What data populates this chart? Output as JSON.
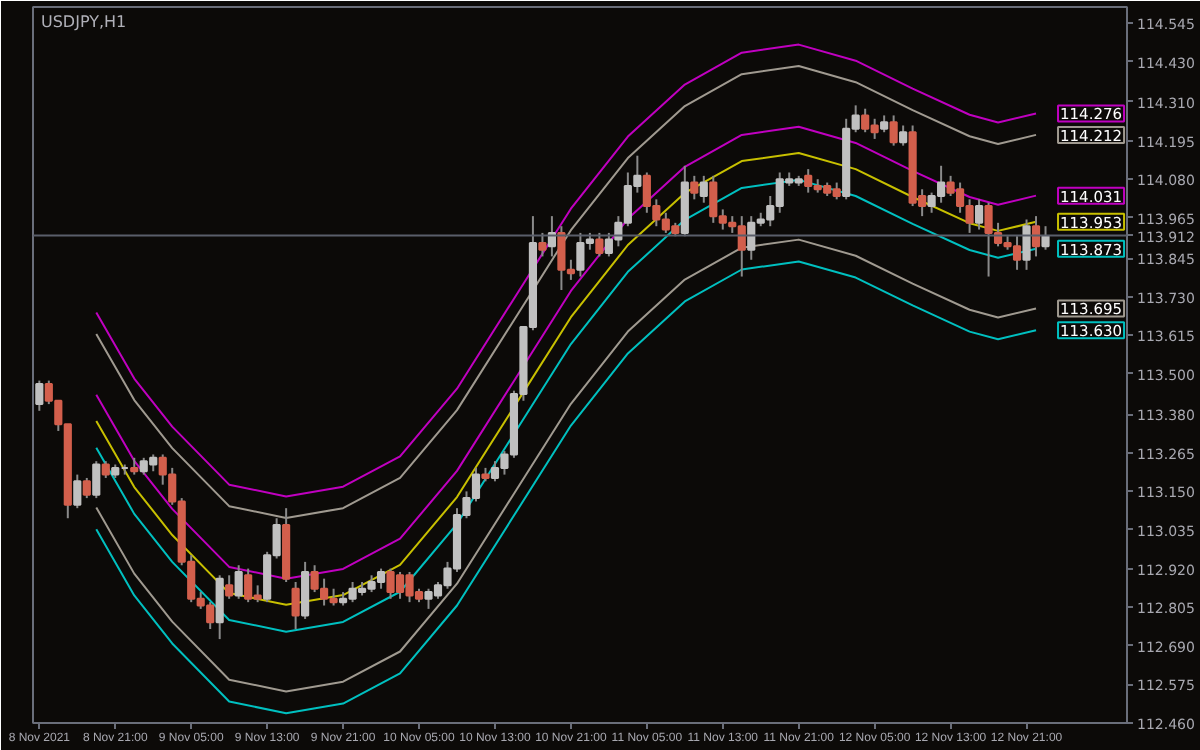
{
  "chart_data": {
    "type": "candlestick",
    "title": "USDJPY,H1",
    "x": [
      "2021-11-08T13:00",
      "2021-11-08T14:00",
      "2021-11-08T15:00",
      "2021-11-08T16:00",
      "2021-11-08T17:00",
      "2021-11-08T18:00",
      "2021-11-08T19:00",
      "2021-11-08T20:00",
      "2021-11-08T21:00",
      "2021-11-08T22:00",
      "2021-11-08T23:00",
      "2021-11-09T00:00",
      "2021-11-09T01:00",
      "2021-11-09T02:00",
      "2021-11-09T03:00",
      "2021-11-09T04:00",
      "2021-11-09T05:00",
      "2021-11-09T06:00",
      "2021-11-09T07:00",
      "2021-11-09T08:00",
      "2021-11-09T09:00",
      "2021-11-09T10:00",
      "2021-11-09T11:00",
      "2021-11-09T12:00",
      "2021-11-09T13:00",
      "2021-11-09T14:00",
      "2021-11-09T15:00",
      "2021-11-09T16:00",
      "2021-11-09T17:00",
      "2021-11-09T18:00",
      "2021-11-09T19:00",
      "2021-11-09T20:00",
      "2021-11-09T21:00",
      "2021-11-09T22:00",
      "2021-11-09T23:00",
      "2021-11-10T00:00",
      "2021-11-10T01:00",
      "2021-11-10T02:00",
      "2021-11-10T03:00",
      "2021-11-10T04:00",
      "2021-11-10T05:00",
      "2021-11-10T06:00",
      "2021-11-10T07:00",
      "2021-11-10T08:00",
      "2021-11-10T09:00",
      "2021-11-10T10:00",
      "2021-11-10T11:00",
      "2021-11-10T12:00",
      "2021-11-10T13:00",
      "2021-11-10T14:00",
      "2021-11-10T15:00",
      "2021-11-10T16:00",
      "2021-11-10T17:00",
      "2021-11-10T18:00",
      "2021-11-10T19:00",
      "2021-11-10T20:00",
      "2021-11-10T21:00",
      "2021-11-10T22:00",
      "2021-11-10T23:00",
      "2021-11-11T00:00",
      "2021-11-11T01:00",
      "2021-11-11T02:00",
      "2021-11-11T03:00",
      "2021-11-11T04:00",
      "2021-11-11T05:00",
      "2021-11-11T06:00",
      "2021-11-11T07:00",
      "2021-11-11T08:00",
      "2021-11-11T09:00",
      "2021-11-11T10:00",
      "2021-11-11T11:00",
      "2021-11-11T12:00",
      "2021-11-11T13:00",
      "2021-11-11T14:00",
      "2021-11-11T15:00",
      "2021-11-11T16:00",
      "2021-11-11T17:00",
      "2021-11-11T18:00",
      "2021-11-11T19:00",
      "2021-11-11T20:00",
      "2021-11-11T21:00",
      "2021-11-11T22:00",
      "2021-11-11T23:00",
      "2021-11-12T00:00",
      "2021-11-12T01:00",
      "2021-11-12T02:00",
      "2021-11-12T03:00",
      "2021-11-12T04:00",
      "2021-11-12T05:00",
      "2021-11-12T06:00",
      "2021-11-12T07:00",
      "2021-11-12T08:00",
      "2021-11-12T09:00",
      "2021-11-12T10:00",
      "2021-11-12T11:00",
      "2021-11-12T12:00",
      "2021-11-12T13:00",
      "2021-11-12T14:00",
      "2021-11-12T15:00",
      "2021-11-12T16:00",
      "2021-11-12T17:00",
      "2021-11-12T18:00",
      "2021-11-12T19:00",
      "2021-11-12T20:00",
      "2021-11-12T21:00",
      "2021-11-12T22:00",
      "2021-11-12T23:00"
    ],
    "ohlc": [
      [
        113.41,
        113.48,
        113.39,
        113.47
      ],
      [
        113.47,
        113.48,
        113.41,
        113.42
      ],
      [
        113.42,
        113.42,
        113.33,
        113.35
      ],
      [
        113.35,
        113.35,
        113.07,
        113.11
      ],
      [
        113.11,
        113.2,
        113.1,
        113.18
      ],
      [
        113.18,
        113.19,
        113.13,
        113.14
      ],
      [
        113.14,
        113.24,
        113.13,
        113.23
      ],
      [
        113.23,
        113.24,
        113.19,
        113.2
      ],
      [
        113.2,
        113.23,
        113.19,
        113.22
      ],
      [
        113.22,
        113.23,
        113.2,
        113.22
      ],
      [
        113.22,
        113.25,
        113.2,
        113.21
      ],
      [
        113.21,
        113.25,
        113.2,
        113.24
      ],
      [
        113.23,
        113.26,
        113.21,
        113.25
      ],
      [
        113.25,
        113.26,
        113.17,
        113.2
      ],
      [
        113.2,
        113.22,
        113.11,
        113.12
      ],
      [
        113.12,
        113.13,
        112.93,
        112.94
      ],
      [
        112.94,
        112.96,
        112.82,
        112.83
      ],
      [
        112.83,
        112.85,
        112.8,
        112.81
      ],
      [
        112.81,
        112.82,
        112.74,
        112.76
      ],
      [
        112.76,
        112.9,
        112.71,
        112.89
      ],
      [
        112.87,
        112.9,
        112.83,
        112.84
      ],
      [
        112.84,
        112.93,
        112.83,
        112.91
      ],
      [
        112.9,
        112.92,
        112.82,
        112.83
      ],
      [
        112.84,
        112.87,
        112.82,
        112.83
      ],
      [
        112.83,
        112.97,
        112.82,
        112.96
      ],
      [
        112.96,
        113.07,
        112.95,
        113.05
      ],
      [
        113.05,
        113.1,
        112.88,
        112.89
      ],
      [
        112.86,
        112.88,
        112.74,
        112.78
      ],
      [
        112.78,
        112.94,
        112.77,
        112.91
      ],
      [
        112.91,
        112.93,
        112.85,
        112.86
      ],
      [
        112.86,
        112.89,
        112.81,
        112.83
      ],
      [
        112.83,
        112.86,
        112.81,
        112.82
      ],
      [
        112.82,
        112.85,
        112.81,
        112.83
      ],
      [
        112.83,
        112.88,
        112.82,
        112.86
      ],
      [
        112.85,
        112.88,
        112.84,
        112.86
      ],
      [
        112.86,
        112.9,
        112.85,
        112.88
      ],
      [
        112.88,
        112.92,
        112.86,
        112.91
      ],
      [
        112.91,
        112.92,
        112.83,
        112.85
      ],
      [
        112.9,
        112.91,
        112.83,
        112.85
      ],
      [
        112.9,
        112.91,
        112.82,
        112.84
      ],
      [
        112.85,
        112.86,
        112.82,
        112.83
      ],
      [
        112.83,
        112.86,
        112.8,
        112.85
      ],
      [
        112.84,
        112.88,
        112.83,
        112.87
      ],
      [
        112.87,
        112.94,
        112.86,
        112.92
      ],
      [
        112.92,
        113.1,
        112.91,
        113.08
      ],
      [
        113.08,
        113.15,
        113.07,
        113.13
      ],
      [
        113.13,
        113.22,
        113.12,
        113.2
      ],
      [
        113.2,
        113.22,
        113.18,
        113.19
      ],
      [
        113.19,
        113.24,
        113.18,
        113.22
      ],
      [
        113.22,
        113.27,
        113.2,
        113.26
      ],
      [
        113.26,
        113.45,
        113.25,
        113.44
      ],
      [
        113.44,
        113.64,
        113.42,
        113.64
      ],
      [
        113.64,
        113.97,
        113.63,
        113.89
      ],
      [
        113.89,
        113.92,
        113.85,
        113.87
      ],
      [
        113.88,
        113.97,
        113.85,
        113.92
      ],
      [
        113.92,
        113.94,
        113.75,
        113.81
      ],
      [
        113.81,
        113.84,
        113.78,
        113.8
      ],
      [
        113.81,
        113.92,
        113.79,
        113.89
      ],
      [
        113.89,
        113.92,
        113.87,
        113.9
      ],
      [
        113.9,
        113.92,
        113.85,
        113.86
      ],
      [
        113.86,
        113.92,
        113.85,
        113.9
      ],
      [
        113.9,
        113.97,
        113.88,
        113.95
      ],
      [
        113.95,
        114.1,
        113.94,
        114.06
      ],
      [
        114.06,
        114.15,
        114.04,
        114.09
      ],
      [
        114.09,
        114.1,
        113.98,
        114.0
      ],
      [
        114.0,
        114.02,
        113.94,
        113.96
      ],
      [
        113.96,
        113.98,
        113.92,
        113.93
      ],
      [
        113.94,
        113.95,
        113.91,
        113.92
      ],
      [
        113.92,
        114.12,
        113.91,
        114.07
      ],
      [
        114.07,
        114.09,
        114.02,
        114.04
      ],
      [
        114.03,
        114.09,
        114.01,
        114.07
      ],
      [
        114.07,
        114.09,
        113.95,
        113.97
      ],
      [
        113.97,
        113.99,
        113.93,
        113.95
      ],
      [
        113.95,
        113.97,
        113.92,
        113.94
      ],
      [
        113.94,
        113.97,
        113.79,
        113.87
      ],
      [
        113.87,
        113.97,
        113.84,
        113.95
      ],
      [
        113.95,
        113.98,
        113.94,
        113.96
      ],
      [
        113.96,
        114.03,
        113.94,
        114.0
      ],
      [
        114.0,
        114.1,
        113.98,
        114.08
      ],
      [
        114.07,
        114.1,
        114.06,
        114.08
      ],
      [
        114.07,
        114.09,
        114.06,
        114.08
      ],
      [
        114.09,
        114.11,
        114.04,
        114.06
      ],
      [
        114.06,
        114.08,
        114.04,
        114.05
      ],
      [
        114.06,
        114.07,
        114.03,
        114.04
      ],
      [
        114.05,
        114.07,
        114.02,
        114.03
      ],
      [
        114.03,
        114.26,
        114.02,
        114.23
      ],
      [
        114.23,
        114.3,
        114.22,
        114.27
      ],
      [
        114.27,
        114.29,
        114.22,
        114.23
      ],
      [
        114.24,
        114.26,
        114.2,
        114.22
      ],
      [
        114.23,
        114.27,
        114.22,
        114.25
      ],
      [
        114.25,
        114.27,
        114.18,
        114.19
      ],
      [
        114.19,
        114.24,
        114.18,
        114.22
      ],
      [
        114.22,
        114.24,
        114.0,
        114.01
      ],
      [
        114.03,
        114.05,
        113.97,
        114.0
      ],
      [
        114.0,
        114.04,
        113.98,
        114.03
      ],
      [
        114.03,
        114.12,
        114.01,
        114.07
      ],
      [
        114.07,
        114.09,
        114.03,
        114.04
      ],
      [
        114.05,
        114.07,
        113.98,
        114.0
      ],
      [
        114.0,
        114.02,
        113.92,
        113.95
      ],
      [
        113.95,
        114.02,
        113.93,
        114.0
      ],
      [
        114.0,
        114.01,
        113.79,
        113.92
      ],
      [
        113.92,
        113.95,
        113.88,
        113.89
      ],
      [
        113.89,
        113.91,
        113.87,
        113.88
      ],
      [
        113.88,
        113.91,
        113.81,
        113.84
      ],
      [
        113.84,
        113.96,
        113.81,
        113.94
      ],
      [
        113.94,
        113.97,
        113.85,
        113.88
      ],
      [
        113.88,
        113.94,
        113.87,
        113.91
      ]
    ],
    "colors": [
      "#c0c0c0",
      "#d35f4c",
      "#d35f4c",
      "#d35f4c",
      "#c0c0c0",
      "#d35f4c",
      "#c0c0c0",
      "#d35f4c",
      "#c0c0c0",
      "#c0c0c0",
      "#d35f4c",
      "#c0c0c0",
      "#c0c0c0",
      "#d35f4c",
      "#d35f4c",
      "#d35f4c",
      "#d35f4c",
      "#d35f4c",
      "#d35f4c",
      "#c0c0c0",
      "#d35f4c",
      "#c0c0c0",
      "#d35f4c",
      "#d35f4c",
      "#c0c0c0",
      "#c0c0c0",
      "#d35f4c",
      "#d35f4c",
      "#c0c0c0",
      "#d35f4c",
      "#d35f4c",
      "#d35f4c",
      "#c0c0c0",
      "#c0c0c0",
      "#c0c0c0",
      "#c0c0c0",
      "#c0c0c0",
      "#d35f4c",
      "#d35f4c",
      "#d35f4c",
      "#d35f4c",
      "#c0c0c0",
      "#c0c0c0",
      "#c0c0c0",
      "#c0c0c0",
      "#c0c0c0",
      "#c0c0c0",
      "#d35f4c",
      "#c0c0c0",
      "#c0c0c0",
      "#c0c0c0",
      "#c0c0c0",
      "#c0c0c0",
      "#d35f4c",
      "#c0c0c0",
      "#d35f4c",
      "#d35f4c",
      "#c0c0c0",
      "#c0c0c0",
      "#d35f4c",
      "#c0c0c0",
      "#c0c0c0",
      "#c0c0c0",
      "#c0c0c0",
      "#d35f4c",
      "#d35f4c",
      "#d35f4c",
      "#d35f4c",
      "#c0c0c0",
      "#d35f4c",
      "#c0c0c0",
      "#d35f4c",
      "#d35f4c",
      "#d35f4c",
      "#d35f4c",
      "#c0c0c0",
      "#c0c0c0",
      "#c0c0c0",
      "#c0c0c0",
      "#c0c0c0",
      "#c0c0c0",
      "#d35f4c",
      "#d35f4c",
      "#d35f4c",
      "#d35f4c",
      "#c0c0c0",
      "#c0c0c0",
      "#d35f4c",
      "#d35f4c",
      "#c0c0c0",
      "#d35f4c",
      "#c0c0c0",
      "#d35f4c",
      "#d35f4c",
      "#c0c0c0",
      "#c0c0c0",
      "#d35f4c",
      "#d35f4c",
      "#d35f4c",
      "#c0c0c0",
      "#d35f4c",
      "#d35f4c",
      "#d35f4c",
      "#d35f4c",
      "#c0c0c0",
      "#d35f4c",
      "#c0c0c0"
    ],
    "series": [
      {
        "type": "line",
        "color": "#c000c0",
        "x": [
          "2021-11-08T19:00",
          "2021-11-08T23:00",
          "2021-11-09T03:00",
          "2021-11-09T09:00",
          "2021-11-09T15:00",
          "2021-11-09T21:00",
          "2021-11-10T03:00",
          "2021-11-10T09:00",
          "2021-11-10T15:00",
          "2021-11-10T21:00",
          "2021-11-11T03:00",
          "2021-11-11T09:00",
          "2021-11-11T15:00",
          "2021-11-11T21:00",
          "2021-11-12T03:00",
          "2021-11-12T09:00",
          "2021-11-12T15:00",
          "2021-11-12T18:00",
          "2021-11-12T22:00"
        ],
        "values": [
          113.683,
          113.486,
          113.343,
          113.17,
          113.135,
          113.164,
          113.254,
          113.456,
          113.724,
          113.992,
          114.207,
          114.362,
          114.457,
          114.481,
          114.433,
          114.35,
          114.272,
          114.249,
          114.276
        ],
        "value_labels": [
          null,
          null,
          null,
          null,
          null,
          null,
          null,
          null,
          null,
          null,
          null,
          null,
          null,
          null,
          null,
          null,
          null,
          null,
          "114.276"
        ]
      },
      {
        "type": "line",
        "color": "#a09a90",
        "x": [
          "2021-11-08T19:00",
          "2021-11-08T23:00",
          "2021-11-09T03:00",
          "2021-11-09T09:00",
          "2021-11-09T15:00",
          "2021-11-09T21:00",
          "2021-11-10T03:00",
          "2021-11-10T09:00",
          "2021-11-10T15:00",
          "2021-11-10T21:00",
          "2021-11-11T03:00",
          "2021-11-11T09:00",
          "2021-11-11T15:00",
          "2021-11-11T21:00",
          "2021-11-12T03:00",
          "2021-11-12T09:00",
          "2021-11-12T15:00",
          "2021-11-12T18:00",
          "2021-11-12T22:00"
        ],
        "values": [
          113.619,
          113.422,
          113.279,
          113.106,
          113.071,
          113.1,
          113.19,
          113.392,
          113.66,
          113.928,
          114.143,
          114.298,
          114.393,
          114.417,
          114.369,
          114.286,
          114.208,
          114.185,
          114.212
        ],
        "value_labels": [
          null,
          null,
          null,
          null,
          null,
          null,
          null,
          null,
          null,
          null,
          null,
          null,
          null,
          null,
          null,
          null,
          null,
          null,
          "114.212"
        ]
      },
      {
        "type": "line",
        "color": "#c000c0",
        "x": [
          "2021-11-08T19:00",
          "2021-11-08T23:00",
          "2021-11-09T03:00",
          "2021-11-09T09:00",
          "2021-11-09T15:00",
          "2021-11-09T21:00",
          "2021-11-10T03:00",
          "2021-11-10T09:00",
          "2021-11-10T15:00",
          "2021-11-10T21:00",
          "2021-11-11T03:00",
          "2021-11-11T09:00",
          "2021-11-11T15:00",
          "2021-11-11T21:00",
          "2021-11-12T03:00",
          "2021-11-12T09:00",
          "2021-11-12T15:00",
          "2021-11-12T18:00",
          "2021-11-12T22:00"
        ],
        "values": [
          113.438,
          113.241,
          113.098,
          112.925,
          112.89,
          112.919,
          113.009,
          113.211,
          113.479,
          113.747,
          113.962,
          114.117,
          114.212,
          114.236,
          114.188,
          114.105,
          114.027,
          114.004,
          114.031
        ],
        "value_labels": [
          null,
          null,
          null,
          null,
          null,
          null,
          null,
          null,
          null,
          null,
          null,
          null,
          null,
          null,
          null,
          null,
          null,
          null,
          "114.031"
        ]
      },
      {
        "type": "line",
        "color": "#c8c000",
        "x": [
          "2021-11-08T19:00",
          "2021-11-08T23:00",
          "2021-11-09T03:00",
          "2021-11-09T09:00",
          "2021-11-09T15:00",
          "2021-11-09T21:00",
          "2021-11-10T03:00",
          "2021-11-10T09:00",
          "2021-11-10T15:00",
          "2021-11-10T21:00",
          "2021-11-11T03:00",
          "2021-11-11T09:00",
          "2021-11-11T15:00",
          "2021-11-11T21:00",
          "2021-11-12T03:00",
          "2021-11-12T09:00",
          "2021-11-12T15:00",
          "2021-11-12T18:00",
          "2021-11-12T22:00"
        ],
        "values": [
          113.36,
          113.163,
          113.02,
          112.847,
          112.812,
          112.841,
          112.931,
          113.133,
          113.401,
          113.669,
          113.884,
          114.039,
          114.134,
          114.158,
          114.11,
          114.027,
          113.949,
          113.926,
          113.953
        ],
        "value_labels": [
          null,
          null,
          null,
          null,
          null,
          null,
          null,
          null,
          null,
          null,
          null,
          null,
          null,
          null,
          null,
          null,
          null,
          null,
          "113.953"
        ]
      },
      {
        "type": "line",
        "color": "#00c0c0",
        "x": [
          "2021-11-08T19:00",
          "2021-11-08T23:00",
          "2021-11-09T03:00",
          "2021-11-09T09:00",
          "2021-11-09T15:00",
          "2021-11-09T21:00",
          "2021-11-10T03:00",
          "2021-11-10T09:00",
          "2021-11-10T15:00",
          "2021-11-10T21:00",
          "2021-11-11T03:00",
          "2021-11-11T09:00",
          "2021-11-11T15:00",
          "2021-11-11T21:00",
          "2021-11-12T03:00",
          "2021-11-12T09:00",
          "2021-11-12T15:00",
          "2021-11-12T18:00",
          "2021-11-12T22:00"
        ],
        "values": [
          113.28,
          113.083,
          112.94,
          112.767,
          112.732,
          112.761,
          112.851,
          113.053,
          113.321,
          113.589,
          113.804,
          113.959,
          114.054,
          114.078,
          114.03,
          113.947,
          113.869,
          113.846,
          113.873
        ],
        "value_labels": [
          null,
          null,
          null,
          null,
          null,
          null,
          null,
          null,
          null,
          null,
          null,
          null,
          null,
          null,
          null,
          null,
          null,
          null,
          "113.873"
        ]
      },
      {
        "type": "line",
        "color": "#a09a90",
        "x": [
          "2021-11-08T19:00",
          "2021-11-08T23:00",
          "2021-11-09T03:00",
          "2021-11-09T09:00",
          "2021-11-09T15:00",
          "2021-11-09T21:00",
          "2021-11-10T03:00",
          "2021-11-10T09:00",
          "2021-11-10T15:00",
          "2021-11-10T21:00",
          "2021-11-11T03:00",
          "2021-11-11T09:00",
          "2021-11-11T15:00",
          "2021-11-11T21:00",
          "2021-11-12T03:00",
          "2021-11-12T09:00",
          "2021-11-12T15:00",
          "2021-11-12T18:00",
          "2021-11-12T22:00"
        ],
        "values": [
          113.102,
          112.905,
          112.762,
          112.589,
          112.554,
          112.583,
          112.673,
          112.875,
          113.143,
          113.411,
          113.626,
          113.781,
          113.876,
          113.9,
          113.852,
          113.769,
          113.691,
          113.668,
          113.695
        ],
        "value_labels": [
          null,
          null,
          null,
          null,
          null,
          null,
          null,
          null,
          null,
          null,
          null,
          null,
          null,
          null,
          null,
          null,
          null,
          null,
          "113.695"
        ]
      },
      {
        "type": "line",
        "color": "#00c0c0",
        "x": [
          "2021-11-08T19:00",
          "2021-11-08T23:00",
          "2021-11-09T03:00",
          "2021-11-09T09:00",
          "2021-11-09T15:00",
          "2021-11-09T21:00",
          "2021-11-10T03:00",
          "2021-11-10T09:00",
          "2021-11-10T15:00",
          "2021-11-10T21:00",
          "2021-11-11T03:00",
          "2021-11-11T09:00",
          "2021-11-11T15:00",
          "2021-11-11T21:00",
          "2021-11-12T03:00",
          "2021-11-12T09:00",
          "2021-11-12T15:00",
          "2021-11-12T18:00",
          "2021-11-12T22:00"
        ],
        "values": [
          113.037,
          112.84,
          112.697,
          112.524,
          112.489,
          112.518,
          112.608,
          112.81,
          113.078,
          113.346,
          113.561,
          113.716,
          113.811,
          113.835,
          113.787,
          113.704,
          113.626,
          113.603,
          113.63
        ],
        "value_labels": [
          null,
          null,
          null,
          null,
          null,
          null,
          null,
          null,
          null,
          null,
          null,
          null,
          null,
          null,
          null,
          null,
          null,
          null,
          "113.630"
        ]
      }
    ],
    "ref_lines": [
      {
        "axis": "y",
        "value": 113.912,
        "label": "113.912",
        "color": "#5a5e6a"
      }
    ],
    "xlim": [
      "2021-11-08T12:20",
      "2021-11-13T07:35"
    ],
    "xticks": [
      {
        "value": "2021-11-08T13:00",
        "label": "8 Nov 2021"
      },
      {
        "value": "2021-11-08T21:00",
        "label": "8 Nov 21:00"
      },
      {
        "value": "2021-11-09T05:00",
        "label": "9 Nov 05:00"
      },
      {
        "value": "2021-11-09T13:00",
        "label": "9 Nov 13:00"
      },
      {
        "value": "2021-11-09T21:00",
        "label": "9 Nov 21:00"
      },
      {
        "value": "2021-11-10T05:00",
        "label": "10 Nov 05:00"
      },
      {
        "value": "2021-11-10T13:00",
        "label": "10 Nov 13:00"
      },
      {
        "value": "2021-11-10T21:00",
        "label": "10 Nov 21:00"
      },
      {
        "value": "2021-11-11T05:00",
        "label": "11 Nov 05:00"
      },
      {
        "value": "2021-11-11T13:00",
        "label": "11 Nov 13:00"
      },
      {
        "value": "2021-11-11T21:00",
        "label": "11 Nov 21:00"
      },
      {
        "value": "2021-11-12T05:00",
        "label": "12 Nov 05:00"
      },
      {
        "value": "2021-11-12T13:00",
        "label": "12 Nov 13:00"
      },
      {
        "value": "2021-11-12T21:00",
        "label": "12 Nov 21:00"
      }
    ],
    "ylim": [
      112.46,
      114.593
    ],
    "yticks": [
      {
        "value": 114.545,
        "label": "114.545"
      },
      {
        "value": 114.43,
        "label": "114.430"
      },
      {
        "value": 114.31,
        "label": "114.310"
      },
      {
        "value": 114.195,
        "label": "114.195"
      },
      {
        "value": 114.08,
        "label": "114.080"
      },
      {
        "value": 113.965,
        "label": "113.965"
      },
      {
        "value": 113.845,
        "label": "113.845"
      },
      {
        "value": 113.73,
        "label": "113.730"
      },
      {
        "value": 113.615,
        "label": "113.615"
      },
      {
        "value": 113.5,
        "label": "113.500"
      },
      {
        "value": 113.38,
        "label": "113.380"
      },
      {
        "value": 113.265,
        "label": "113.265"
      },
      {
        "value": 113.15,
        "label": "113.150"
      },
      {
        "value": 113.035,
        "label": "113.035"
      },
      {
        "value": 112.92,
        "label": "112.920"
      },
      {
        "value": 112.805,
        "label": "112.805"
      },
      {
        "value": 112.69,
        "label": "112.690"
      },
      {
        "value": 112.575,
        "label": "112.575"
      },
      {
        "value": 112.46,
        "label": "112.460"
      }
    ],
    "grid": false
  }
}
